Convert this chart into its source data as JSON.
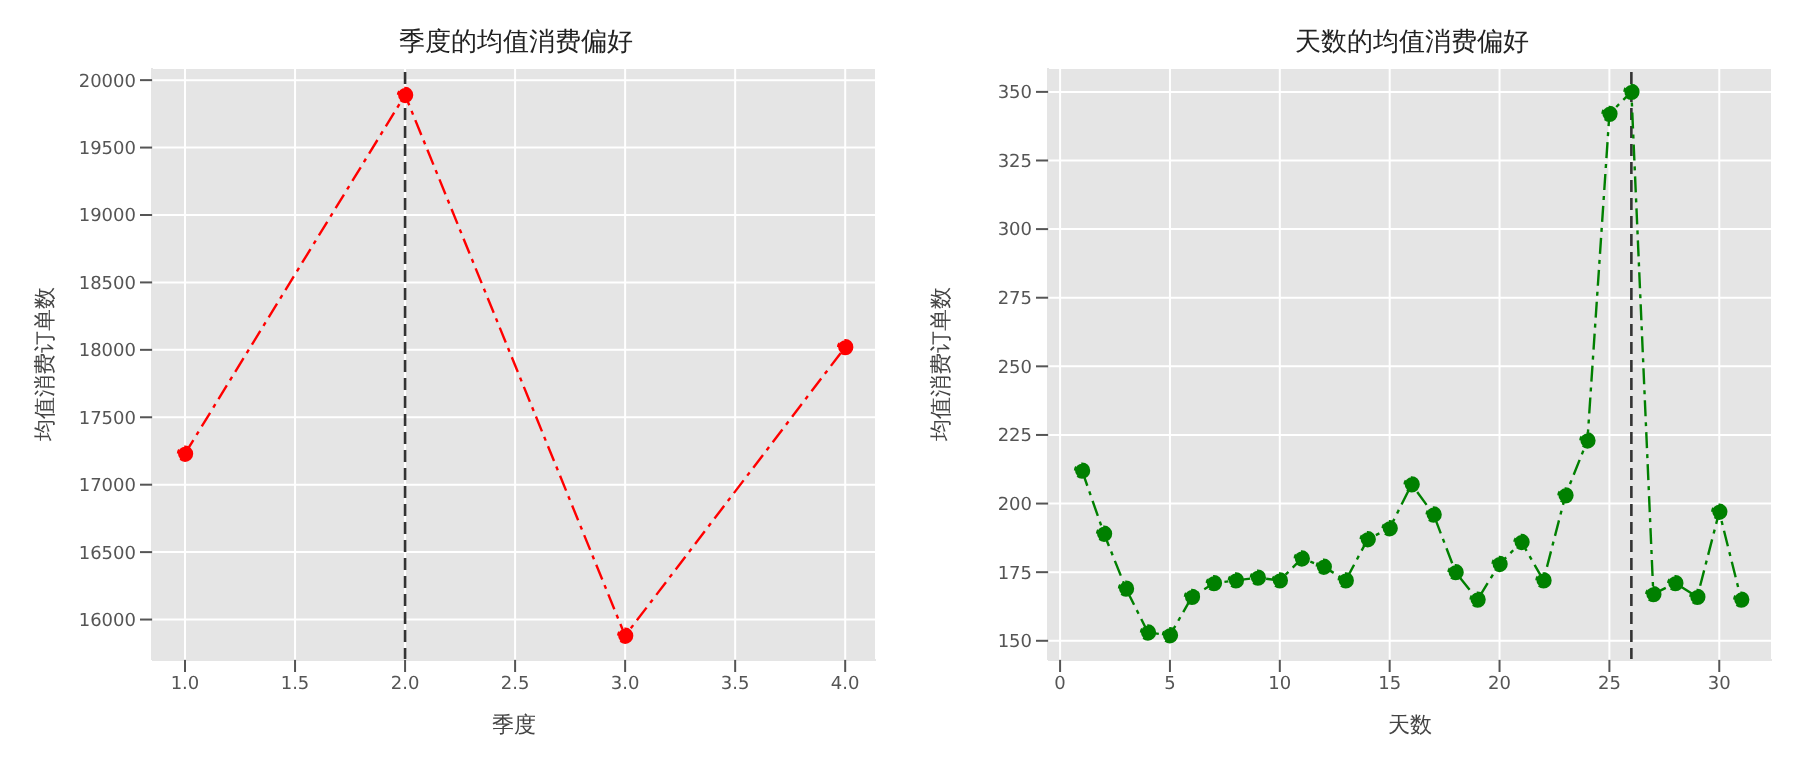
{
  "chart_data": [
    {
      "type": "line",
      "title": "季度的均值消费偏好",
      "xlabel": "季度",
      "ylabel": "均值消费订单数",
      "x": [
        1,
        2,
        3,
        4
      ],
      "series": [
        {
          "color": "#ff0000",
          "values": [
            17230,
            19890,
            15880,
            18020
          ]
        }
      ],
      "xlim": [
        0.85,
        4.14
      ],
      "xticks": [
        {
          "value": 1,
          "label": "1.0"
        },
        {
          "value": 1.5,
          "label": "1.5"
        },
        {
          "value": 2,
          "label": "2.0"
        },
        {
          "value": 2.5,
          "label": "2.5"
        },
        {
          "value": 3,
          "label": "3.0"
        },
        {
          "value": 3.5,
          "label": "3.5"
        },
        {
          "value": 4,
          "label": "4.0"
        }
      ],
      "ylim": [
        15700,
        20090
      ],
      "yticks": [
        16000,
        16500,
        17000,
        17500,
        18000,
        18500,
        19000,
        19500,
        20000
      ],
      "ref_lines": [
        {
          "axis": "x",
          "value": 2,
          "color": "#333333",
          "line_style": "dashed"
        }
      ],
      "grid": true,
      "marker": "circle",
      "line_style": "dashdot"
    },
    {
      "type": "line",
      "title": "天数的均值消费偏好",
      "xlabel": "天数",
      "ylabel": "均值消费订单数",
      "x": [
        1,
        2,
        3,
        4,
        5,
        6,
        7,
        8,
        9,
        10,
        11,
        12,
        13,
        14,
        15,
        16,
        17,
        18,
        19,
        20,
        21,
        22,
        23,
        24,
        25,
        26,
        27,
        28,
        29,
        30,
        31
      ],
      "series": [
        {
          "color": "#008000",
          "values": [
            212,
            189,
            169,
            153,
            152,
            166,
            171,
            172,
            173,
            172,
            180,
            177,
            172,
            187,
            191,
            207,
            196,
            175,
            165,
            178,
            186,
            172,
            203,
            223,
            342,
            350,
            167,
            171,
            166,
            197,
            165
          ]
        }
      ],
      "xlim": [
        -0.55,
        32.4
      ],
      "xticks": [
        0,
        5,
        10,
        15,
        20,
        25,
        30
      ],
      "ylim": [
        143,
        358.7
      ],
      "yticks": [
        150,
        175,
        200,
        225,
        250,
        275,
        300,
        325,
        350
      ],
      "ref_lines": [
        {
          "axis": "x",
          "value": 26,
          "color": "#333333",
          "line_style": "dashed"
        }
      ],
      "grid": true,
      "marker": "circle",
      "line_style": "dashdot"
    }
  ]
}
